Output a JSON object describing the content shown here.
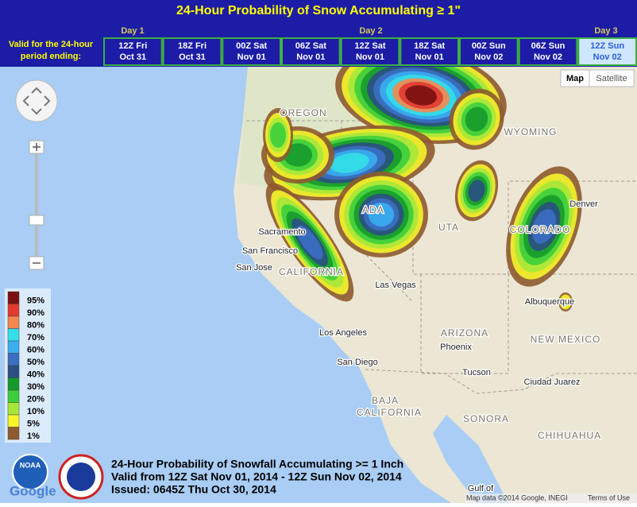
{
  "header": {
    "title": "24-Hour Probability of Snow Accumulating ≥ 1\"",
    "valid_label": [
      "Valid for the 24-hour",
      "period ending:"
    ],
    "day_labels": [
      "Day 1",
      "Day 2",
      "Day 3"
    ]
  },
  "periods": [
    {
      "line1": "12Z Fri",
      "line2": "Oct 31"
    },
    {
      "line1": "18Z Fri",
      "line2": "Oct 31"
    },
    {
      "line1": "00Z Sat",
      "line2": "Nov 01"
    },
    {
      "line1": "06Z Sat",
      "line2": "Nov 01"
    },
    {
      "line1": "12Z Sat",
      "line2": "Nov 01"
    },
    {
      "line1": "18Z Sat",
      "line2": "Nov 01"
    },
    {
      "line1": "00Z Sun",
      "line2": "Nov 02"
    },
    {
      "line1": "06Z Sun",
      "line2": "Nov 02"
    },
    {
      "line1": "12Z Sun",
      "line2": "Nov 02"
    }
  ],
  "selected_period": 8,
  "map": {
    "buttons": [
      "Map",
      "Satellite"
    ],
    "labels": [
      "OREGON",
      "WYOMING",
      "Denver",
      "Sacramento",
      "San Francisco",
      "San Jose",
      "CALIFORNIA",
      "Las Vegas",
      "UTA",
      "ADA",
      "COLORADO",
      "Albuquerque",
      "Los Angeles",
      "ARIZONA",
      "Phoenix",
      "NEW MEXICO",
      "San Diego",
      "Tucson",
      "Ciudad Juarez",
      "BAJA",
      "CALIFORNIA",
      "SONORA",
      "CHIHUAHUA",
      "Gulf of"
    ],
    "attribution": "Map data ©2014 Google, INEGI",
    "terms": "Terms of Use"
  },
  "legend": [
    {
      "label": "95%",
      "color": "#7a1010"
    },
    {
      "label": "90%",
      "color": "#e23a2e"
    },
    {
      "label": "80%",
      "color": "#f4874e"
    },
    {
      "label": "70%",
      "color": "#33e0e8"
    },
    {
      "label": "60%",
      "color": "#3aaef0"
    },
    {
      "label": "50%",
      "color": "#3b6fc4"
    },
    {
      "label": "40%",
      "color": "#2b4f82"
    },
    {
      "label": "30%",
      "color": "#169a2c"
    },
    {
      "label": "20%",
      "color": "#3ccf3c"
    },
    {
      "label": "10%",
      "color": "#a6e83a"
    },
    {
      "label": "5%",
      "color": "#f5f52a"
    },
    {
      "label": "1%",
      "color": "#8e5a2e"
    }
  ],
  "footer": {
    "lines": [
      "24-Hour Probability of Snowfall Accumulating >= 1 Inch",
      "Valid from 12Z Sat Nov 01, 2014 - 12Z Sun Nov 02, 2014",
      "Issued: 0645Z Thu Oct 30, 2014"
    ],
    "logos": [
      "NOAA",
      "Google"
    ]
  }
}
